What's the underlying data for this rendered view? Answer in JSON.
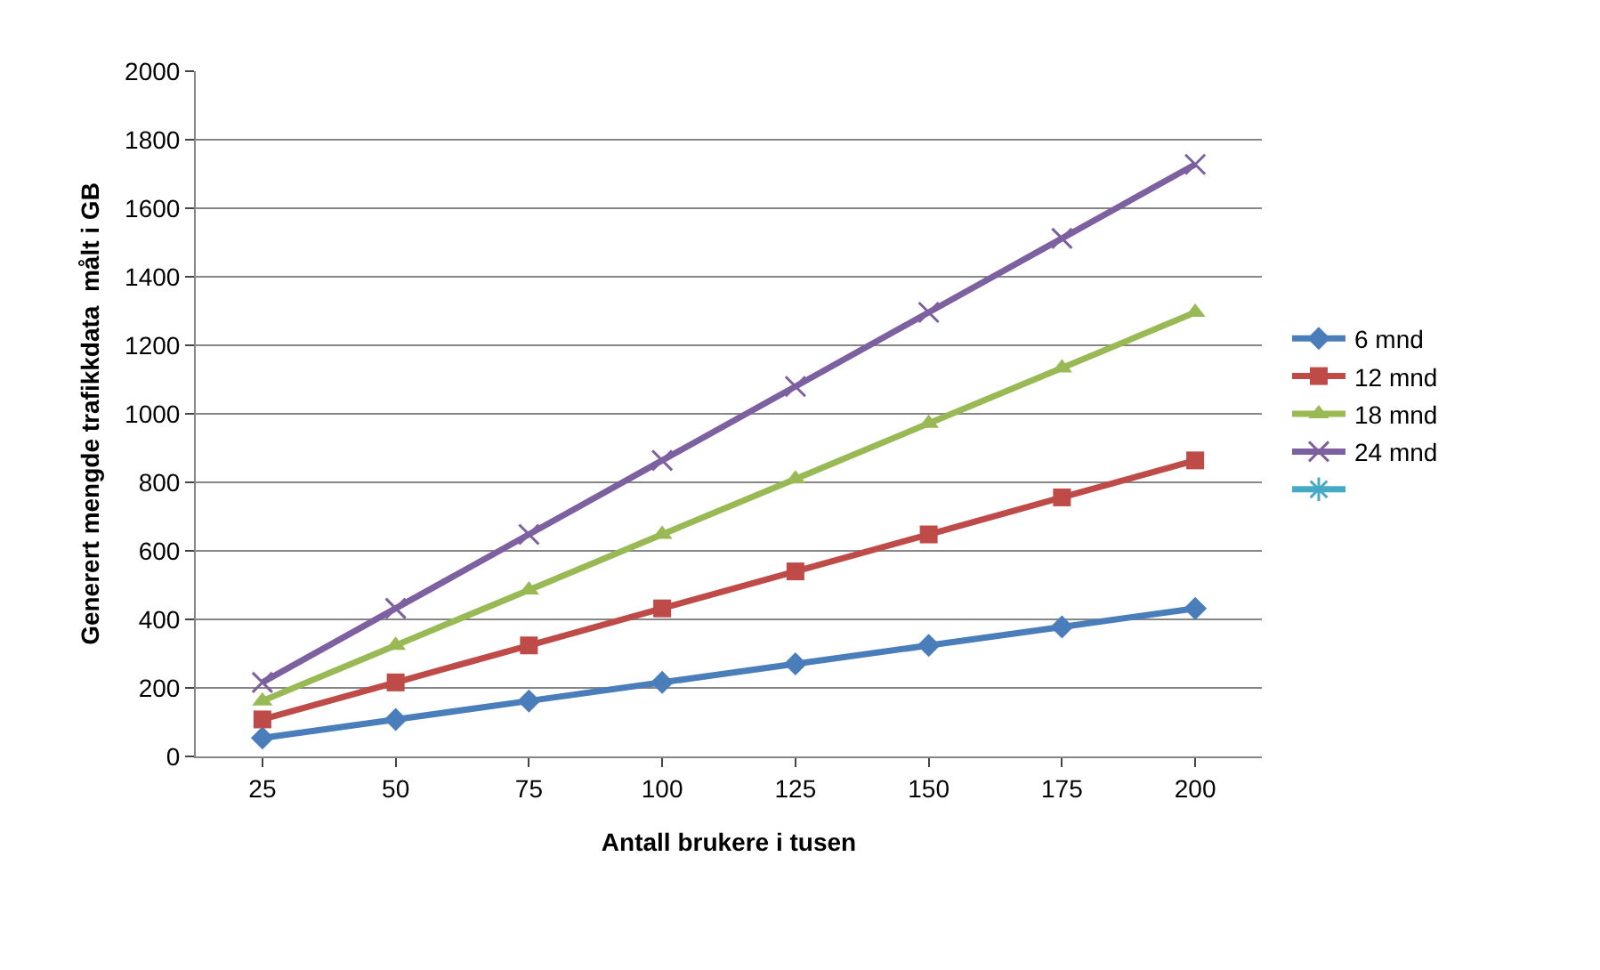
{
  "chart_data": {
    "type": "line",
    "xlabel": "Antall brukere i tusen",
    "ylabel": "Generert mengde trafikkdata  målt i GB",
    "categories": [
      "25",
      "50",
      "75",
      "100",
      "125",
      "150",
      "175",
      "200"
    ],
    "series": [
      {
        "name": "6 mnd",
        "color": "#4a7ebb",
        "marker": "diamond",
        "values": [
          54,
          108,
          162,
          216,
          270,
          324,
          378,
          432
        ]
      },
      {
        "name": "12 mnd",
        "color": "#be4b48",
        "marker": "square",
        "values": [
          108,
          216,
          324,
          432,
          540,
          648,
          756,
          864
        ]
      },
      {
        "name": "18 mnd",
        "color": "#98b954",
        "marker": "triangle",
        "values": [
          162,
          324,
          486,
          648,
          810,
          972,
          1134,
          1296
        ]
      },
      {
        "name": "24 mnd",
        "color": "#7d60a0",
        "marker": "cross",
        "values": [
          216,
          432,
          648,
          864,
          1080,
          1296,
          1512,
          1728
        ]
      },
      {
        "color": "#46aac5",
        "marker": "star",
        "values": [
          null,
          null,
          null,
          null,
          null,
          null,
          null,
          null
        ]
      }
    ],
    "ylim": [
      0,
      2000
    ],
    "yticks": [
      0,
      200,
      400,
      600,
      800,
      1000,
      1200,
      1400,
      1600,
      1800,
      2000
    ],
    "grid": "y",
    "legend": "right",
    "line_style": "solid"
  }
}
